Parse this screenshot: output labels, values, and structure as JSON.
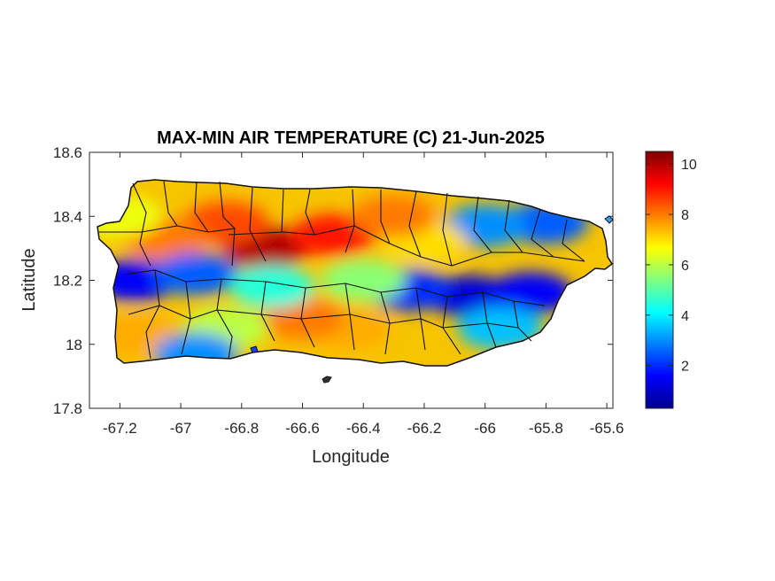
{
  "chart_data": {
    "type": "heatmap",
    "title": "MAX-MIN AIR TEMPERATURE (C) 21-Jun-2025",
    "xlabel": "Longitude",
    "ylabel": "Latitude",
    "xlim": [
      -67.3,
      -65.58
    ],
    "ylim": [
      17.8,
      18.6
    ],
    "xticks": [
      "-67.2",
      "-67",
      "-66.8",
      "-66.6",
      "-66.4",
      "-66.2",
      "-66",
      "-65.8",
      "-65.6"
    ],
    "xtick_values": [
      -67.2,
      -67.0,
      -66.8,
      -66.6,
      -66.4,
      -66.2,
      -66.0,
      -65.8,
      -65.6
    ],
    "yticks": [
      "18.6",
      "18.4",
      "18.2",
      "18",
      "17.8"
    ],
    "ytick_values": [
      18.6,
      18.4,
      18.2,
      18.0,
      17.8
    ],
    "colorbar": {
      "colormap": "jet",
      "range": [
        0.3,
        10.5
      ],
      "ticks": [
        "10",
        "8",
        "6",
        "4",
        "2"
      ],
      "tick_values": [
        10,
        8,
        6,
        4,
        2
      ]
    },
    "regions_approx": [
      {
        "lon": -66.72,
        "lat": 18.3,
        "value": 10.0
      },
      {
        "lon": -66.5,
        "lat": 18.34,
        "value": 9.0
      },
      {
        "lon": -66.85,
        "lat": 18.38,
        "value": 8.5
      },
      {
        "lon": -67.05,
        "lat": 18.33,
        "value": 8.0
      },
      {
        "lon": -67.15,
        "lat": 18.2,
        "value": 1.5
      },
      {
        "lon": -66.95,
        "lat": 18.22,
        "value": 2.5
      },
      {
        "lon": -66.05,
        "lat": 18.15,
        "value": 1.2
      },
      {
        "lon": -65.85,
        "lat": 18.16,
        "value": 1.5
      },
      {
        "lon": -66.25,
        "lat": 18.17,
        "value": 2.0
      },
      {
        "lon": -65.8,
        "lat": 18.38,
        "value": 2.5
      },
      {
        "lon": -66.0,
        "lat": 18.37,
        "value": 3.0
      },
      {
        "lon": -66.2,
        "lat": 18.32,
        "value": 7.0
      },
      {
        "lon": -66.3,
        "lat": 18.4,
        "value": 8.0
      },
      {
        "lon": -66.45,
        "lat": 18.05,
        "value": 7.5
      },
      {
        "lon": -66.6,
        "lat": 18.08,
        "value": 8.0
      },
      {
        "lon": -66.85,
        "lat": 18.05,
        "value": 6.0
      },
      {
        "lon": -67.15,
        "lat": 18.03,
        "value": 7.5
      },
      {
        "lon": -66.95,
        "lat": 17.97,
        "value": 3.0
      },
      {
        "lon": -65.95,
        "lat": 18.05,
        "value": 3.5
      },
      {
        "lon": -66.7,
        "lat": 18.18,
        "value": 4.5
      },
      {
        "lon": -66.4,
        "lat": 18.2,
        "value": 5.5
      },
      {
        "lon": -67.2,
        "lat": 18.4,
        "value": 6.5
      }
    ]
  }
}
